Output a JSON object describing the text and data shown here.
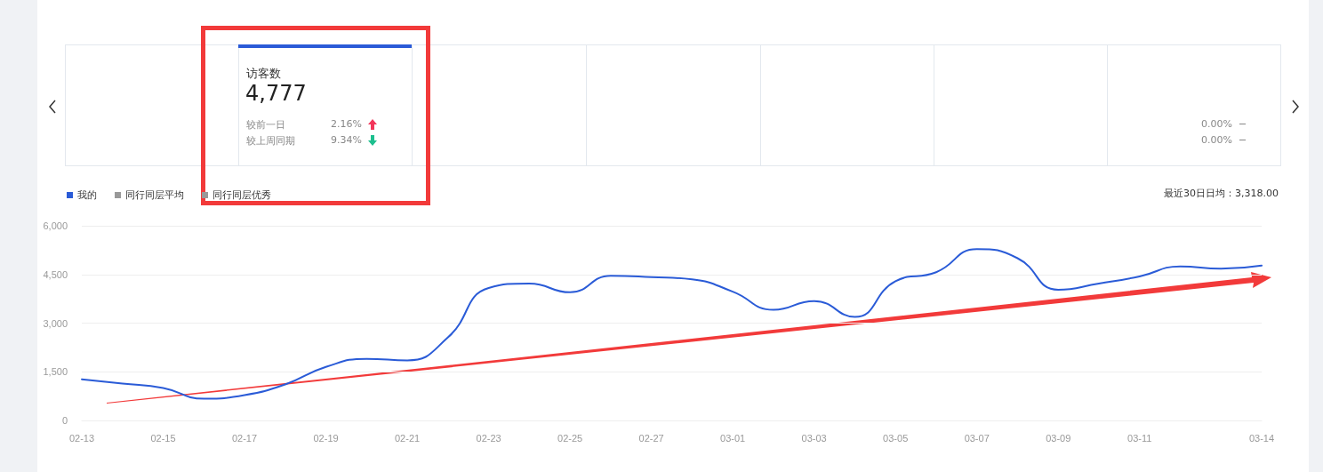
{
  "chart_data": {
    "type": "line",
    "categories": [
      "02-13",
      null,
      "02-15",
      null,
      "02-17",
      null,
      "02-19",
      null,
      "02-21",
      null,
      "02-23",
      null,
      "02-25",
      null,
      "02-27",
      null,
      "03-01",
      null,
      "03-03",
      null,
      "03-05",
      null,
      "03-07",
      null,
      "03-09",
      null,
      "03-11",
      null,
      null,
      "03-14"
    ],
    "series": [
      {
        "name": "我的",
        "color": "#2a5bd7",
        "values": [
          1270,
          1140,
          1000,
          670,
          780,
          1110,
          1650,
          1900,
          1850,
          2560,
          4080,
          4220,
          3950,
          4460,
          4420,
          4350,
          3970,
          3410,
          3680,
          3190,
          4290,
          4570,
          5280,
          5000,
          4030,
          4220,
          4440,
          4750,
          4680,
          4777
        ]
      },
      {
        "name": "同行同层平均",
        "color": "#999999",
        "values": [
          null,
          null,
          null,
          null,
          null,
          null,
          null,
          null,
          null,
          null,
          null,
          null,
          null,
          null,
          null,
          null,
          null,
          null,
          null,
          null,
          null,
          null,
          null,
          null,
          null,
          null,
          null,
          null,
          null,
          null
        ]
      },
      {
        "name": "同行同层优秀",
        "color": "#999999",
        "values": [
          null,
          null,
          null,
          null,
          null,
          null,
          null,
          null,
          null,
          null,
          null,
          null,
          null,
          null,
          null,
          null,
          null,
          null,
          null,
          null,
          null,
          null,
          null,
          null,
          null,
          null,
          null,
          null,
          null,
          null
        ]
      }
    ],
    "ylim": [
      0,
      6000
    ],
    "yticks": [
      0,
      {
        "value": 1500,
        "label": "1,500"
      },
      {
        "value": 3000,
        "label": "3,000"
      },
      {
        "value": 4500,
        "label": "4,500"
      },
      {
        "value": 6000,
        "label": "6,000"
      }
    ],
    "grid": "y",
    "legend": "top left",
    "marker": "none",
    "line_style": "solid",
    "annotations": [
      "访客数",
      "4,777",
      "较前一日",
      "2.16%",
      "较上周同期",
      "9.34%",
      "最近30日日均：3,318.00",
      "0.00%",
      "0.00%"
    ]
  }
}
